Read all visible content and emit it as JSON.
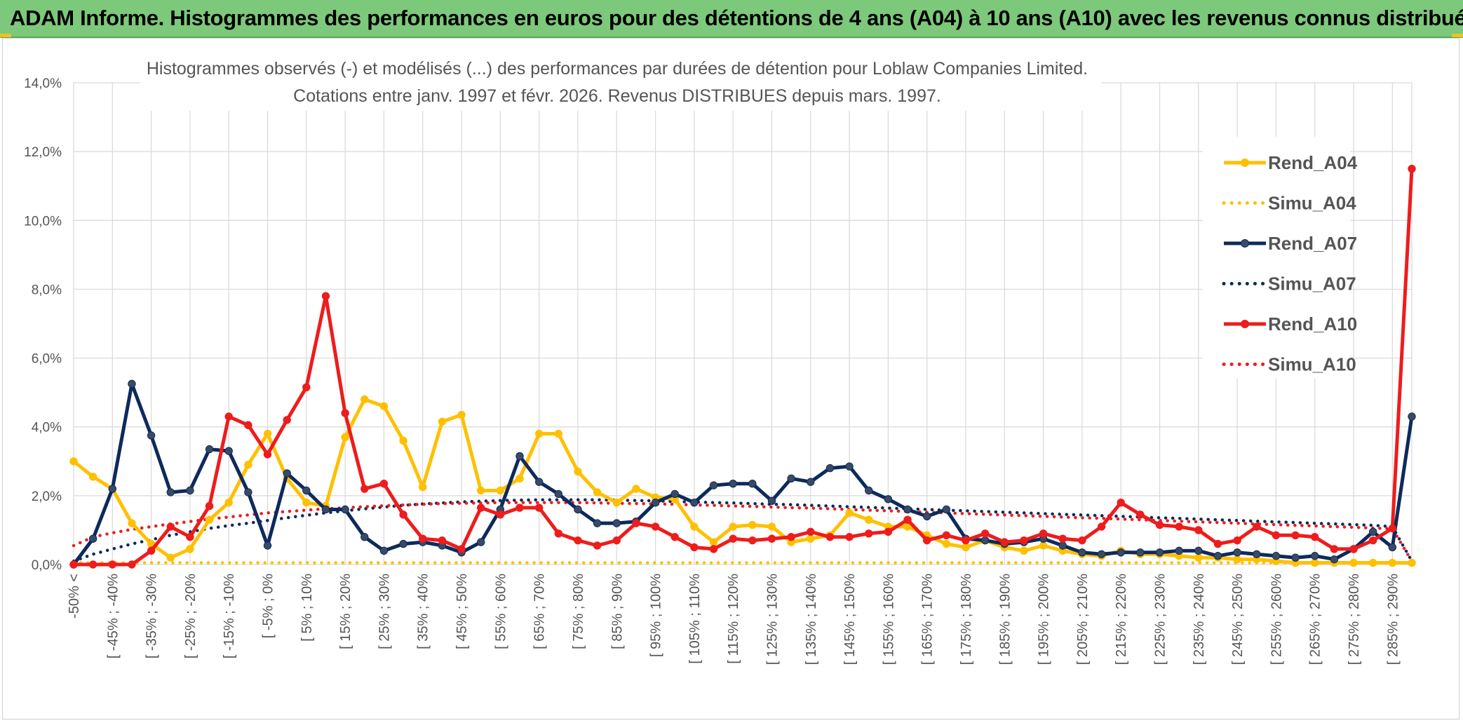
{
  "banner": {
    "title": "ADAM Informe. Histogrammes des performances en euros pour des détentions de 4 ans (A04) à 10 ans (A10) avec les revenus connus distribués"
  },
  "colors": {
    "banner_bg": "#7dc97b",
    "A04": "#ffc000",
    "A07": "#0e2a5c",
    "A10": "#ee1c1c",
    "grid": "#d9d9d9"
  },
  "chart_data": {
    "type": "line",
    "title_line1": "Histogrammes observés (-) et modélisés (...) des performances par durées de détention pour Loblaw Companies Limited.",
    "title_line2": "Cotations entre janv. 1997 et févr. 2026. Revenus DISTRIBUES depuis mars. 1997.",
    "xlabel": "",
    "ylabel": "",
    "ylim": [
      0,
      14
    ],
    "y_ticks": [
      "0,0%",
      "2,0%",
      "4,0%",
      "6,0%",
      "8,0%",
      "10,0%",
      "12,0%",
      "14,0%"
    ],
    "x_labels": [
      "-50% <",
      "[ -45% ; -40%",
      "[ -35% ; -30%",
      "[ -25% ; -20%",
      "[ -15% ; -10%",
      "[ -5% ; 0%",
      "[ 5% ; 10%",
      "[ 15% ; 20%",
      "[ 25% ; 30%",
      "[ 35% ; 40%",
      "[ 45% ; 50%",
      "[ 55% ; 60%",
      "[ 65% ; 70%",
      "[ 75% ; 80%",
      "[ 85% ; 90%",
      "[ 95% ; 100%",
      "[ 105% ; 110%",
      "[ 115% ; 120%",
      "[ 125% ; 130%",
      "[ 135% ; 140%",
      "[ 145% ; 150%",
      "[ 155% ; 160%",
      "[ 165% ; 170%",
      "[ 175% ; 180%",
      "[ 185% ; 190%",
      "[ 195% ; 200%",
      "[ 205% ; 210%",
      "[ 215% ; 220%",
      "[ 225% ; 230%",
      "[ 235% ; 240%",
      "[ 245% ; 250%",
      "[ 255% ; 260%",
      "[ 265% ; 270%",
      "[ 275% ; 280%",
      "[ 285% ; 290%"
    ],
    "num_bins": 70,
    "legend_position": "right",
    "series": [
      {
        "name": "Rend_A04",
        "style": "solid",
        "color": "#ffc000",
        "values": [
          3.0,
          2.55,
          2.2,
          1.2,
          0.6,
          0.2,
          0.45,
          1.3,
          1.8,
          2.9,
          3.8,
          2.5,
          1.8,
          1.7,
          3.7,
          4.8,
          4.6,
          3.6,
          2.25,
          4.15,
          4.35,
          2.15,
          2.15,
          2.5,
          3.8,
          3.8,
          2.7,
          2.1,
          1.8,
          2.2,
          1.95,
          1.9,
          1.1,
          0.65,
          1.1,
          1.15,
          1.1,
          0.65,
          0.75,
          0.85,
          1.5,
          1.3,
          1.1,
          1.1,
          0.85,
          0.6,
          0.5,
          0.7,
          0.5,
          0.4,
          0.55,
          0.4,
          0.3,
          0.25,
          0.4,
          0.3,
          0.3,
          0.25,
          0.2,
          0.2,
          0.15,
          0.15,
          0.1,
          0.05,
          0.05,
          0.05,
          0.05,
          0.05,
          0.05,
          0.05
        ]
      },
      {
        "name": "Simu_A04",
        "style": "dotted",
        "color": "#ffc000",
        "values": [
          0.05,
          0.05,
          0.05,
          0.05,
          0.05,
          0.05,
          0.05,
          0.05,
          0.05,
          0.05,
          0.05,
          0.05,
          0.05,
          0.05,
          0.05,
          0.05,
          0.05,
          0.05,
          0.05,
          0.05,
          0.05,
          0.05,
          0.05,
          0.05,
          0.05,
          0.05,
          0.05,
          0.05,
          0.05,
          0.05,
          0.05,
          0.05,
          0.05,
          0.05,
          0.05,
          0.05,
          0.05,
          0.05,
          0.05,
          0.05,
          0.05,
          0.05,
          0.05,
          0.05,
          0.05,
          0.05,
          0.05,
          0.05,
          0.05,
          0.05,
          0.05,
          0.05,
          0.05,
          0.05,
          0.05,
          0.05,
          0.05,
          0.05,
          0.05,
          0.05,
          0.05,
          0.05,
          0.05,
          0.05,
          0.05,
          0.05,
          0.05,
          0.05,
          0.05,
          0.05
        ]
      },
      {
        "name": "Rend_A07",
        "style": "solid",
        "color": "#0e2a5c",
        "values": [
          0.0,
          0.75,
          2.2,
          5.25,
          3.75,
          2.1,
          2.15,
          3.35,
          3.3,
          2.1,
          0.55,
          2.65,
          2.15,
          1.6,
          1.6,
          0.8,
          0.4,
          0.6,
          0.65,
          0.55,
          0.35,
          0.65,
          1.6,
          3.15,
          2.4,
          2.05,
          1.6,
          1.2,
          1.2,
          1.25,
          1.8,
          2.05,
          1.8,
          2.3,
          2.35,
          2.35,
          1.85,
          2.5,
          2.4,
          2.8,
          2.85,
          2.15,
          1.9,
          1.6,
          1.4,
          1.6,
          0.75,
          0.7,
          0.6,
          0.65,
          0.75,
          0.55,
          0.35,
          0.3,
          0.35,
          0.35,
          0.35,
          0.4,
          0.4,
          0.25,
          0.35,
          0.3,
          0.25,
          0.2,
          0.25,
          0.15,
          0.45,
          0.95,
          0.5,
          4.3
        ]
      },
      {
        "name": "Simu_A07",
        "style": "dotted",
        "color": "#0e2a5c",
        "values": [
          0.1,
          0.3,
          0.45,
          0.6,
          0.72,
          0.85,
          0.95,
          1.05,
          1.13,
          1.2,
          1.28,
          1.36,
          1.43,
          1.5,
          1.56,
          1.62,
          1.67,
          1.72,
          1.76,
          1.79,
          1.82,
          1.84,
          1.86,
          1.87,
          1.88,
          1.88,
          1.88,
          1.88,
          1.87,
          1.86,
          1.85,
          1.83,
          1.82,
          1.8,
          1.79,
          1.77,
          1.75,
          1.74,
          1.72,
          1.7,
          1.68,
          1.66,
          1.64,
          1.62,
          1.6,
          1.58,
          1.56,
          1.54,
          1.52,
          1.5,
          1.48,
          1.46,
          1.44,
          1.42,
          1.4,
          1.38,
          1.36,
          1.34,
          1.32,
          1.3,
          1.28,
          1.26,
          1.24,
          1.22,
          1.2,
          1.18,
          1.16,
          1.14,
          1.1,
          0.1
        ]
      },
      {
        "name": "Rend_A10",
        "style": "solid",
        "color": "#ee1c1c",
        "values": [
          0.0,
          0.0,
          0.0,
          0.0,
          0.4,
          1.1,
          0.8,
          1.7,
          4.3,
          4.05,
          3.2,
          4.2,
          5.15,
          7.8,
          4.4,
          2.2,
          2.35,
          1.45,
          0.75,
          0.7,
          0.45,
          1.65,
          1.45,
          1.65,
          1.65,
          0.9,
          0.7,
          0.55,
          0.7,
          1.2,
          1.1,
          0.8,
          0.5,
          0.45,
          0.75,
          0.7,
          0.75,
          0.8,
          0.95,
          0.8,
          0.8,
          0.9,
          0.95,
          1.3,
          0.7,
          0.85,
          0.7,
          0.9,
          0.65,
          0.7,
          0.9,
          0.75,
          0.7,
          1.1,
          1.8,
          1.45,
          1.15,
          1.1,
          1.0,
          0.6,
          0.7,
          1.1,
          0.85,
          0.85,
          0.8,
          0.45,
          0.45,
          0.7,
          1.05,
          11.5
        ]
      },
      {
        "name": "Simu_A10",
        "style": "dotted",
        "color": "#ee1c1c",
        "values": [
          0.55,
          0.8,
          0.92,
          1.02,
          1.1,
          1.18,
          1.25,
          1.32,
          1.38,
          1.44,
          1.5,
          1.54,
          1.58,
          1.62,
          1.65,
          1.68,
          1.71,
          1.73,
          1.75,
          1.77,
          1.78,
          1.79,
          1.8,
          1.8,
          1.8,
          1.8,
          1.8,
          1.79,
          1.78,
          1.77,
          1.76,
          1.75,
          1.73,
          1.72,
          1.7,
          1.69,
          1.67,
          1.65,
          1.64,
          1.62,
          1.6,
          1.58,
          1.56,
          1.54,
          1.52,
          1.5,
          1.48,
          1.46,
          1.44,
          1.42,
          1.4,
          1.38,
          1.36,
          1.34,
          1.32,
          1.3,
          1.28,
          1.26,
          1.24,
          1.22,
          1.2,
          1.18,
          1.16,
          1.14,
          1.12,
          1.1,
          1.08,
          1.06,
          1.04,
          0.1
        ]
      }
    ]
  }
}
